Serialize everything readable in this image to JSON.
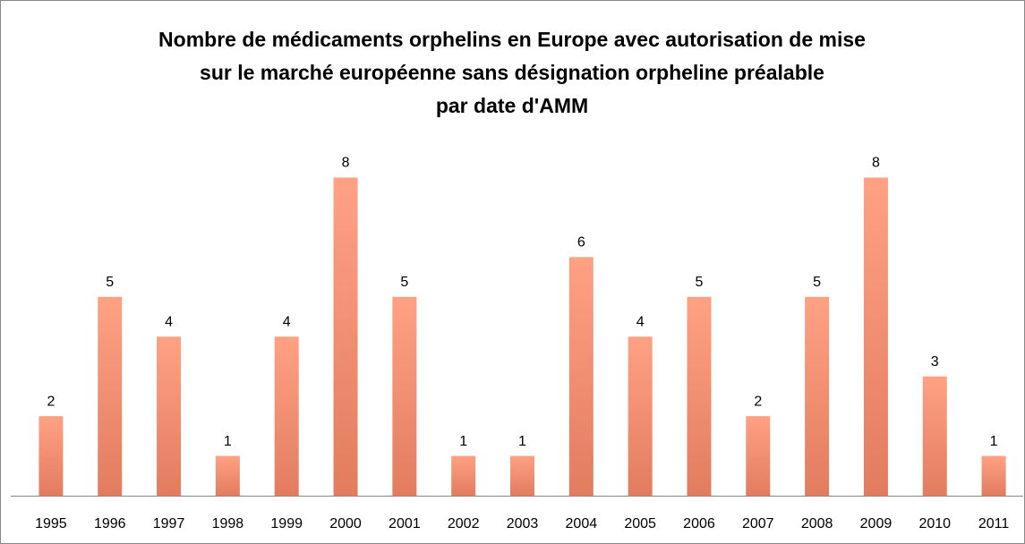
{
  "chart_data": {
    "type": "bar",
    "title": [
      "Nombre de médicaments orphelins en Europe avec autorisation de mise",
      "sur le marché européenne sans désignation orpheline préalable",
      "par date d'AMM"
    ],
    "categories": [
      "1995",
      "1996",
      "1997",
      "1998",
      "1999",
      "2000",
      "2001",
      "2002",
      "2003",
      "2004",
      "2005",
      "2006",
      "2007",
      "2008",
      "2009",
      "2010",
      "2011"
    ],
    "values": [
      2,
      5,
      4,
      1,
      4,
      8,
      5,
      1,
      1,
      6,
      4,
      5,
      2,
      5,
      8,
      3,
      1
    ],
    "color": "#f4896b",
    "ylim": [
      0,
      9
    ]
  }
}
